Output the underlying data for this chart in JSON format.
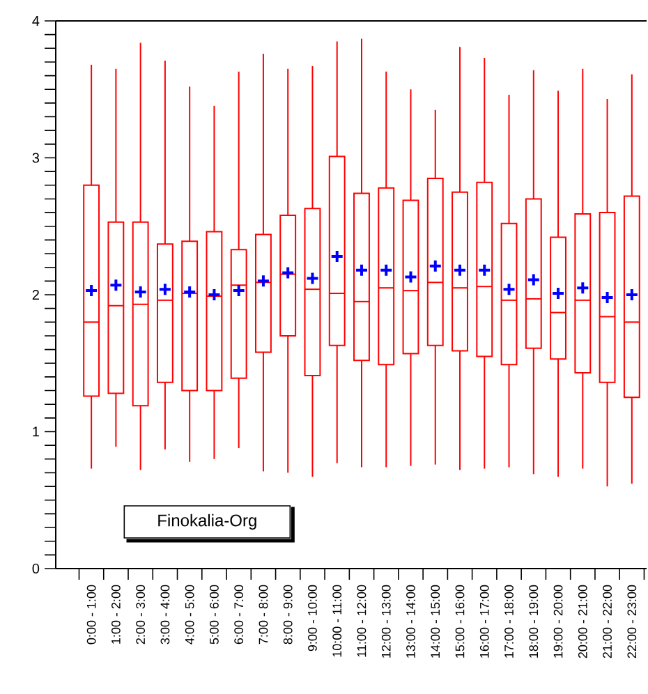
{
  "chart_data": {
    "type": "box",
    "categories": [
      "0:00 - 1:00",
      "1:00 - 2:00",
      "2:00 - 3:00",
      "3:00 - 4:00",
      "4:00 - 5:00",
      "5:00 - 6:00",
      "6:00 - 7:00",
      "7:00 - 8:00",
      "8:00 - 9:00",
      "9:00 - 10:00",
      "10:00 - 11:00",
      "11:00 - 12:00",
      "12:00 - 13:00",
      "13:00 - 14:00",
      "14:00 - 15:00",
      "15:00 - 16:00",
      "16:00 - 17:00",
      "17:00 - 18:00",
      "18:00 - 19:00",
      "19:00 - 20:00",
      "20:00 - 21:00",
      "21:00 - 22:00",
      "22:00 - 23:00"
    ],
    "series": [
      {
        "color": "#ff0000",
        "boxes": [
          {
            "low": 0.73,
            "q1": 1.26,
            "median": 1.8,
            "q3": 2.8,
            "high": 3.68,
            "mean": 2.03
          },
          {
            "low": 0.89,
            "q1": 1.28,
            "median": 1.92,
            "q3": 2.53,
            "high": 3.65,
            "mean": 2.07
          },
          {
            "low": 0.72,
            "q1": 1.19,
            "median": 1.93,
            "q3": 2.53,
            "high": 3.84,
            "mean": 2.02
          },
          {
            "low": 0.87,
            "q1": 1.36,
            "median": 1.96,
            "q3": 2.37,
            "high": 3.71,
            "mean": 2.04
          },
          {
            "low": 0.78,
            "q1": 1.3,
            "median": 2.01,
            "q3": 2.39,
            "high": 3.52,
            "mean": 2.02
          },
          {
            "low": 0.8,
            "q1": 1.3,
            "median": 1.99,
            "q3": 2.46,
            "high": 3.38,
            "mean": 2.0
          },
          {
            "low": 0.88,
            "q1": 1.39,
            "median": 2.07,
            "q3": 2.33,
            "high": 3.63,
            "mean": 2.03
          },
          {
            "low": 0.71,
            "q1": 1.58,
            "median": 2.09,
            "q3": 2.44,
            "high": 3.76,
            "mean": 2.1
          },
          {
            "low": 0.7,
            "q1": 1.7,
            "median": 2.15,
            "q3": 2.58,
            "high": 3.65,
            "mean": 2.16
          },
          {
            "low": 0.67,
            "q1": 1.41,
            "median": 2.04,
            "q3": 2.63,
            "high": 3.67,
            "mean": 2.12
          },
          {
            "low": 0.77,
            "q1": 1.63,
            "median": 2.01,
            "q3": 3.01,
            "high": 3.85,
            "mean": 2.28
          },
          {
            "low": 0.74,
            "q1": 1.52,
            "median": 1.95,
            "q3": 2.74,
            "high": 3.87,
            "mean": 2.18
          },
          {
            "low": 0.74,
            "q1": 1.49,
            "median": 2.05,
            "q3": 2.78,
            "high": 3.63,
            "mean": 2.18
          },
          {
            "low": 0.75,
            "q1": 1.57,
            "median": 2.03,
            "q3": 2.69,
            "high": 3.5,
            "mean": 2.13
          },
          {
            "low": 0.76,
            "q1": 1.63,
            "median": 2.09,
            "q3": 2.85,
            "high": 3.35,
            "mean": 2.21
          },
          {
            "low": 0.72,
            "q1": 1.59,
            "median": 2.05,
            "q3": 2.75,
            "high": 3.81,
            "mean": 2.18
          },
          {
            "low": 0.73,
            "q1": 1.55,
            "median": 2.06,
            "q3": 2.82,
            "high": 3.73,
            "mean": 2.18
          },
          {
            "low": 0.74,
            "q1": 1.49,
            "median": 1.96,
            "q3": 2.52,
            "high": 3.46,
            "mean": 2.04
          },
          {
            "low": 0.69,
            "q1": 1.61,
            "median": 1.97,
            "q3": 2.7,
            "high": 3.64,
            "mean": 2.11
          },
          {
            "low": 0.67,
            "q1": 1.53,
            "median": 1.87,
            "q3": 2.42,
            "high": 3.49,
            "mean": 2.01
          },
          {
            "low": 0.73,
            "q1": 1.43,
            "median": 1.96,
            "q3": 2.59,
            "high": 3.65,
            "mean": 2.05
          },
          {
            "low": 0.6,
            "q1": 1.36,
            "median": 1.84,
            "q3": 2.6,
            "high": 3.43,
            "mean": 1.98
          },
          {
            "low": 0.62,
            "q1": 1.25,
            "median": 1.8,
            "q3": 2.72,
            "high": 3.61,
            "mean": 2.0
          }
        ]
      }
    ],
    "ylim": [
      0,
      4
    ],
    "yticks": [
      0,
      1,
      2,
      3,
      4
    ],
    "annotations": [
      "Finokalia-Org"
    ]
  }
}
